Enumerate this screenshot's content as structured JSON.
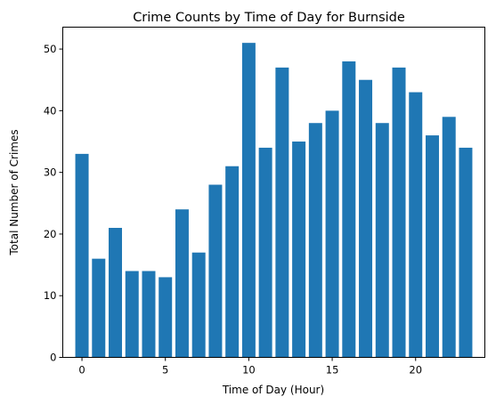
{
  "chart_data": {
    "type": "bar",
    "title": "Crime Counts by Time of Day for Burnside",
    "xlabel": "Time of Day (Hour)",
    "ylabel": "Total Number of Crimes",
    "x": [
      0,
      1,
      2,
      3,
      4,
      5,
      6,
      7,
      8,
      9,
      10,
      11,
      12,
      13,
      14,
      15,
      16,
      17,
      18,
      19,
      20,
      21,
      22,
      23
    ],
    "values": [
      33,
      16,
      21,
      14,
      14,
      13,
      24,
      17,
      28,
      31,
      51,
      34,
      47,
      35,
      38,
      40,
      48,
      45,
      38,
      47,
      43,
      36,
      39,
      34
    ],
    "xlim": [
      -1.15,
      24.15
    ],
    "ylim": [
      0,
      53.55
    ],
    "xticks": [
      0,
      5,
      10,
      15,
      20
    ],
    "yticks": [
      0,
      10,
      20,
      30,
      40,
      50
    ],
    "bar_width": 0.8,
    "grid": false,
    "colors": {
      "bar": "#1f77b4"
    }
  }
}
